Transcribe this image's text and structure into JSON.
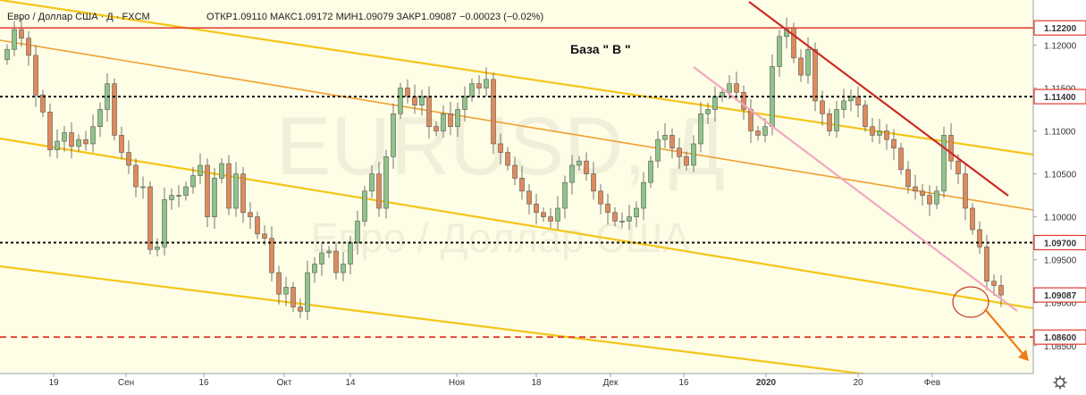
{
  "header": {
    "title": "Евро / Доллар США · Д · FXCM",
    "ohlc": "ОТКР1.09110  МАКС1.09172  МИН1.09079  ЗАКР1.09087  −0.00023 (−0.02%)"
  },
  "annotation": "База  \" В \"",
  "watermark": {
    "symbol": "EURUSD, Д",
    "name": "Евро / Доллар США"
  },
  "colors": {
    "background": "#fefde6",
    "bull": "#8ec48a",
    "bear": "#e08a5b",
    "channel_yellow": "#f5c518",
    "channel_orange": "#f0a030",
    "trend_red": "#cc2a2a",
    "trend_pink": "#f4a6c0",
    "level_red": "#e03a2f",
    "level_black": "#111111"
  },
  "chart_data": {
    "type": "candlestick",
    "ylim": [
      1.083,
      1.124
    ],
    "y_ticks": [
      "1.12000",
      "1.11500",
      "1.11000",
      "1.10500",
      "1.10000",
      "1.09500",
      "1.09000",
      "1.08500"
    ],
    "x_ticks": [
      "19",
      "Сен",
      "16",
      "Окт",
      "14",
      "Ноя",
      "18",
      "Дек",
      "16",
      "2020",
      "20",
      "Фев"
    ],
    "levels": [
      {
        "value": 1.122,
        "label": "1.12200",
        "style": "solid-red"
      },
      {
        "value": 1.114,
        "label": "1.11400",
        "style": "dotted-black"
      },
      {
        "value": 1.097,
        "label": "1.09700",
        "style": "dotted-black"
      },
      {
        "value": 1.086,
        "label": "1.08600",
        "style": "dashed-red"
      }
    ],
    "last_price_label": "1.09087",
    "closes": [
      1.1195,
      1.1218,
      1.1208,
      1.1188,
      1.1142,
      1.1122,
      1.1078,
      1.1088,
      1.1098,
      1.1082,
      1.109,
      1.1085,
      1.1105,
      1.1125,
      1.1155,
      1.1095,
      1.1075,
      1.106,
      1.1035,
      1.1035,
      1.0962,
      1.0965,
      1.102,
      1.1025,
      1.1025,
      1.1035,
      1.1048,
      1.106,
      1.1,
      1.1045,
      1.1062,
      1.101,
      1.105,
      1.1005,
      1.1,
      1.098,
      1.0975,
      1.0935,
      1.091,
      1.0918,
      1.0895,
      1.089,
      1.0935,
      1.0945,
      1.0958,
      1.096,
      1.0935,
      1.0945,
      1.097,
      1.0995,
      1.103,
      1.105,
      1.101,
      1.107,
      1.112,
      1.115,
      1.114,
      1.113,
      1.114,
      1.1105,
      1.11,
      1.112,
      1.1105,
      1.1125,
      1.114,
      1.1155,
      1.115,
      1.116,
      1.1085,
      1.1075,
      1.106,
      1.1045,
      1.103,
      1.1015,
      1.1005,
      1.1,
      1.0995,
      1.101,
      1.104,
      1.106,
      1.1065,
      1.105,
      1.103,
      1.1015,
      1.1005,
      1.0995,
      1.0995,
      1.1,
      1.101,
      1.104,
      1.1065,
      1.109,
      1.1095,
      1.108,
      1.107,
      1.106,
      1.1085,
      1.112,
      1.1125,
      1.114,
      1.1145,
      1.1155,
      1.1145,
      1.1125,
      1.11,
      1.1095,
      1.1105,
      1.1175,
      1.121,
      1.122,
      1.1185,
      1.1165,
      1.1195,
      1.1135,
      1.112,
      1.11,
      1.1125,
      1.1135,
      1.114,
      1.113,
      1.1105,
      1.1095,
      1.11,
      1.109,
      1.108,
      1.1055,
      1.1035,
      1.103,
      1.1025,
      1.1015,
      1.103,
      1.1095,
      1.1065,
      1.105,
      1.101,
      1.0985,
      1.0965,
      1.0925,
      1.092,
      1.0909
    ]
  },
  "settings_icon": "gear-icon"
}
